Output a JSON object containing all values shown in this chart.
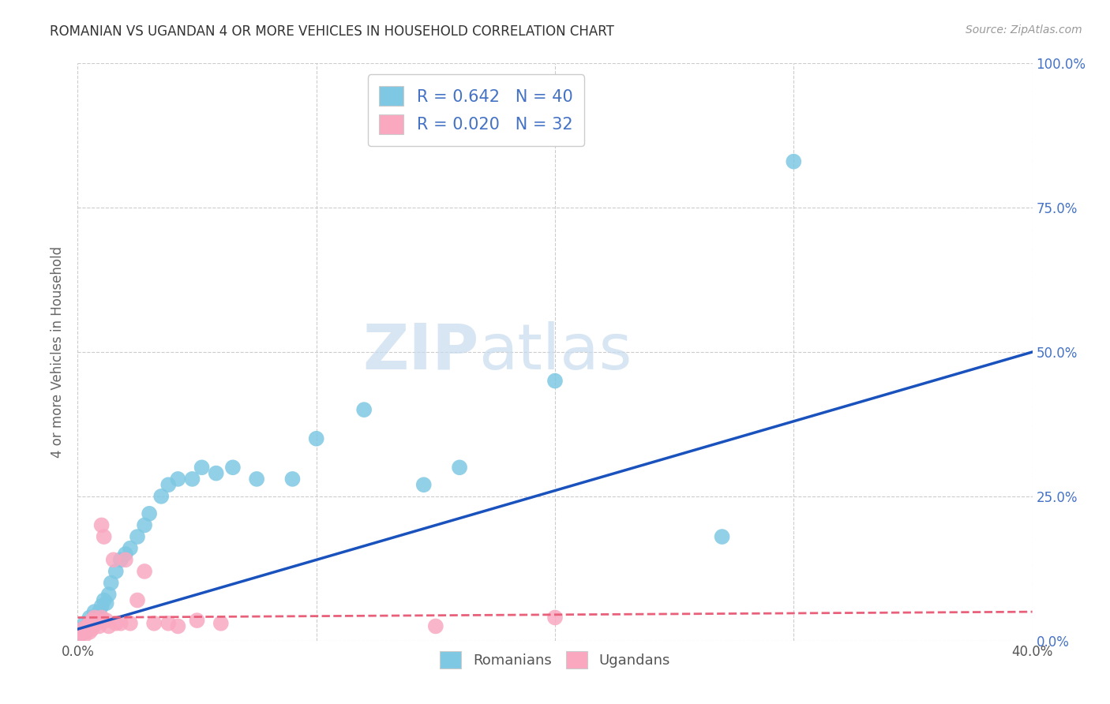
{
  "title": "ROMANIAN VS UGANDAN 4 OR MORE VEHICLES IN HOUSEHOLD CORRELATION CHART",
  "source": "Source: ZipAtlas.com",
  "ylabel": "4 or more Vehicles in Household",
  "xlim": [
    0.0,
    0.4
  ],
  "ylim": [
    0.0,
    1.0
  ],
  "xticks": [
    0.0,
    0.1,
    0.2,
    0.3,
    0.4
  ],
  "yticks": [
    0.0,
    0.25,
    0.5,
    0.75,
    1.0
  ],
  "xticklabels": [
    "0.0%",
    "",
    "",
    "",
    "40.0%"
  ],
  "yticklabels_right": [
    "0.0%",
    "25.0%",
    "50.0%",
    "75.0%",
    "100.0%"
  ],
  "romanian_color": "#7EC8E3",
  "ugandan_color": "#F9A8C0",
  "romanian_line_color": "#1A52BD",
  "ugandan_line_color": "#E8607A",
  "R_romanian": 0.642,
  "N_romanian": 40,
  "R_ugandan": 0.02,
  "N_ugandan": 32,
  "background_color": "#ffffff",
  "grid_color": "#cccccc",
  "romanian_x": [
    0.001,
    0.002,
    0.003,
    0.003,
    0.004,
    0.005,
    0.005,
    0.006,
    0.007,
    0.007,
    0.008,
    0.009,
    0.01,
    0.011,
    0.012,
    0.013,
    0.014,
    0.016,
    0.018,
    0.02,
    0.022,
    0.025,
    0.028,
    0.03,
    0.035,
    0.038,
    0.042,
    0.048,
    0.052,
    0.058,
    0.065,
    0.075,
    0.09,
    0.1,
    0.12,
    0.145,
    0.16,
    0.2,
    0.27,
    0.3
  ],
  "romanian_y": [
    0.01,
    0.02,
    0.015,
    0.03,
    0.02,
    0.025,
    0.04,
    0.03,
    0.035,
    0.05,
    0.04,
    0.05,
    0.06,
    0.07,
    0.065,
    0.08,
    0.1,
    0.12,
    0.14,
    0.15,
    0.16,
    0.18,
    0.2,
    0.22,
    0.25,
    0.27,
    0.28,
    0.28,
    0.3,
    0.29,
    0.3,
    0.28,
    0.28,
    0.35,
    0.4,
    0.27,
    0.3,
    0.45,
    0.18,
    0.83
  ],
  "ugandan_x": [
    0.001,
    0.002,
    0.002,
    0.003,
    0.004,
    0.004,
    0.005,
    0.005,
    0.006,
    0.006,
    0.007,
    0.008,
    0.009,
    0.01,
    0.01,
    0.011,
    0.012,
    0.013,
    0.015,
    0.016,
    0.018,
    0.02,
    0.022,
    0.025,
    0.028,
    0.032,
    0.038,
    0.042,
    0.05,
    0.06,
    0.15,
    0.2
  ],
  "ugandan_y": [
    0.01,
    0.015,
    0.02,
    0.01,
    0.025,
    0.02,
    0.015,
    0.03,
    0.02,
    0.035,
    0.04,
    0.03,
    0.025,
    0.2,
    0.04,
    0.18,
    0.035,
    0.025,
    0.14,
    0.03,
    0.03,
    0.14,
    0.03,
    0.07,
    0.12,
    0.03,
    0.03,
    0.025,
    0.035,
    0.03,
    0.025,
    0.04
  ],
  "rom_line_x": [
    0.0,
    0.4
  ],
  "rom_line_y": [
    0.02,
    0.5
  ],
  "uga_line_x": [
    0.0,
    0.4
  ],
  "uga_line_y": [
    0.04,
    0.05
  ]
}
